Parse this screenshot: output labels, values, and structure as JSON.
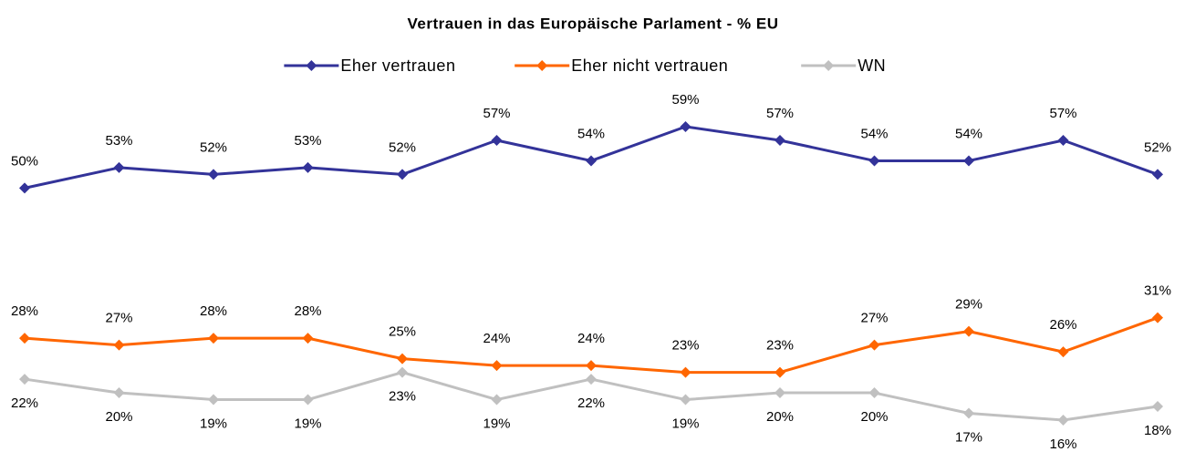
{
  "chart_data": {
    "type": "line",
    "title": "Vertrauen in das Europäische Parlament  - % EU",
    "categories": [
      null,
      null,
      null,
      null,
      null,
      null,
      null,
      null,
      null,
      null,
      null,
      null,
      null
    ],
    "legend": "top",
    "series": [
      {
        "name": "Eher vertrauen",
        "color": "#333399",
        "values": [
          50,
          53,
          52,
          53,
          52,
          57,
          54,
          59,
          57,
          54,
          54,
          57,
          52
        ],
        "value_labels": [
          "50%",
          "53%",
          "52%",
          "53%",
          "52%",
          "57%",
          "54%",
          "59%",
          "57%",
          "54%",
          "54%",
          "57%",
          "52%"
        ]
      },
      {
        "name": "Eher nicht vertrauen",
        "color": "#ff6600",
        "values": [
          28,
          27,
          28,
          28,
          25,
          24,
          24,
          23,
          23,
          27,
          29,
          26,
          31
        ],
        "value_labels": [
          "28%",
          "27%",
          "28%",
          "28%",
          "25%",
          "24%",
          "24%",
          "23%",
          "23%",
          "27%",
          "29%",
          "26%",
          "31%"
        ]
      },
      {
        "name": "WN",
        "color": "#c0c0c0",
        "values": [
          22,
          20,
          19,
          19,
          23,
          19,
          22,
          19,
          20,
          20,
          17,
          16,
          18
        ],
        "value_labels": [
          "22%",
          "20%",
          "19%",
          "19%",
          "23%",
          "19%",
          "22%",
          "19%",
          "20%",
          "20%",
          "17%",
          "16%",
          "18%"
        ]
      }
    ]
  }
}
